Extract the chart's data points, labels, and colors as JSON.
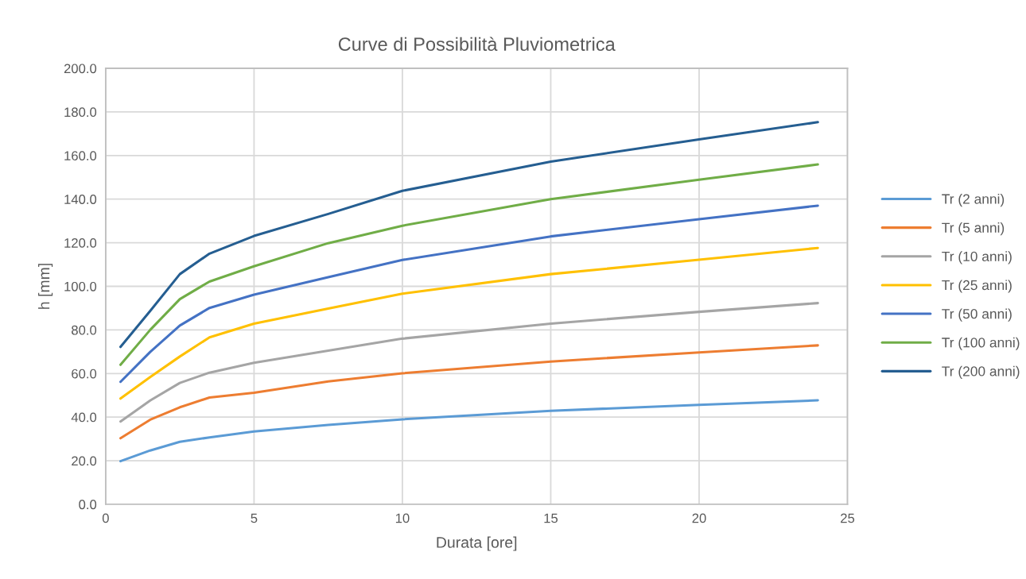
{
  "chart_data": {
    "type": "line",
    "title": "Curve di Possibilità Pluviometrica",
    "xlabel": "Durata [ore]",
    "ylabel": "h [mm]",
    "x": [
      0.5,
      1.5,
      2.5,
      3.5,
      5,
      7.5,
      10,
      15,
      20,
      24
    ],
    "series": [
      {
        "name": "Tr (2 anni)",
        "color": "#5b9bd5",
        "values": [
          19.8,
          24.7,
          28.7,
          30.7,
          33.4,
          36.4,
          39.0,
          42.9,
          45.6,
          47.7
        ]
      },
      {
        "name": "Tr (5 anni)",
        "color": "#ed7d31",
        "values": [
          30.3,
          38.8,
          44.5,
          49.0,
          51.2,
          56.4,
          60.1,
          65.5,
          69.7,
          72.9
        ]
      },
      {
        "name": "Tr (10 anni)",
        "color": "#a5a5a5",
        "values": [
          38.0,
          47.6,
          55.7,
          60.4,
          64.9,
          70.5,
          76.0,
          82.9,
          88.3,
          92.3
        ]
      },
      {
        "name": "Tr (25 anni)",
        "color": "#ffc000",
        "values": [
          48.5,
          58.4,
          67.8,
          76.6,
          82.9,
          89.8,
          96.6,
          105.6,
          112.2,
          117.6
        ]
      },
      {
        "name": "Tr (50 anni)",
        "color": "#4472c4",
        "values": [
          56.2,
          69.9,
          82.0,
          90.1,
          96.2,
          104.2,
          112.1,
          122.9,
          130.8,
          137.0
        ]
      },
      {
        "name": "Tr (100 anni)",
        "color": "#70ad47",
        "values": [
          64.0,
          80.0,
          94.1,
          102.2,
          109.2,
          119.8,
          127.8,
          140.0,
          148.9,
          155.9
        ]
      },
      {
        "name": "Tr (200 anni)",
        "color": "#255e91",
        "values": [
          72.2,
          88.7,
          105.6,
          115.0,
          123.1,
          133.2,
          143.8,
          157.2,
          167.4,
          175.3
        ]
      }
    ],
    "xlim": [
      0,
      25
    ],
    "xticks": [
      0,
      5,
      10,
      15,
      20,
      25
    ],
    "ylim": [
      0,
      200
    ],
    "yticks": [
      {
        "value": 0,
        "label": "0.0"
      },
      {
        "value": 20,
        "label": "20.0"
      },
      {
        "value": 40,
        "label": "40.0"
      },
      {
        "value": 60,
        "label": "60.0"
      },
      {
        "value": 80,
        "label": "80.0"
      },
      {
        "value": 100,
        "label": "100.0"
      },
      {
        "value": 120,
        "label": "120.0"
      },
      {
        "value": 140,
        "label": "140.0"
      },
      {
        "value": 160,
        "label": "160.0"
      },
      {
        "value": 180,
        "label": "180.0"
      },
      {
        "value": 200,
        "label": "200.0"
      }
    ],
    "grid": true,
    "legend": "right",
    "marker": "none",
    "line_style": "solid"
  }
}
